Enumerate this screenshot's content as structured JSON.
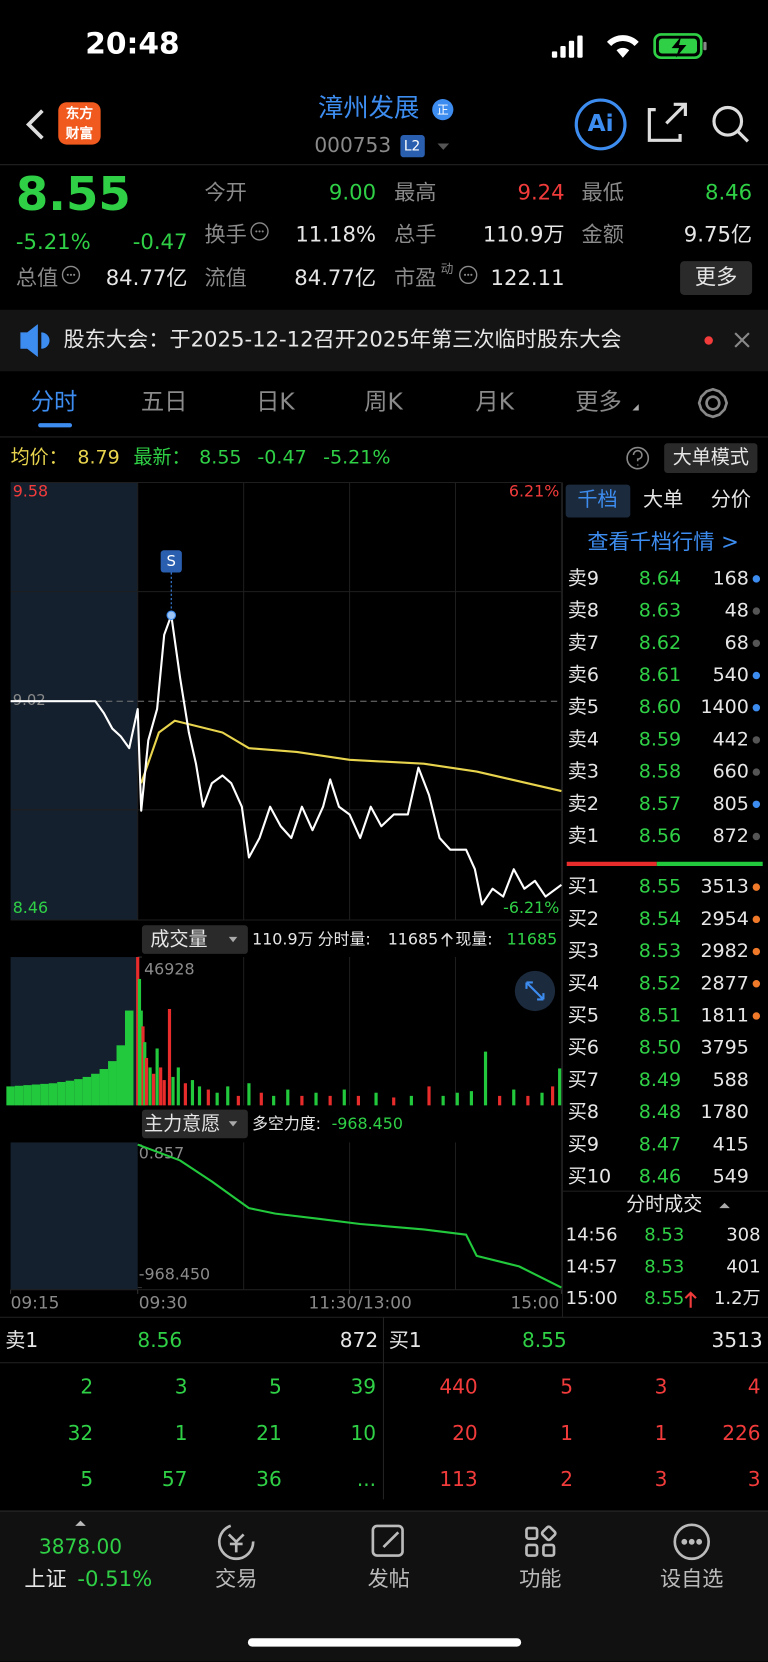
{
  "status_bar": {
    "time": "20:48"
  },
  "header": {
    "logo": [
      "东方",
      "财富"
    ],
    "name": "漳州发展",
    "badge": "正",
    "code": "000753",
    "level": "L2",
    "ai": "Ai"
  },
  "quote": {
    "price": "8.55",
    "change_pct": "-5.21%",
    "change": "-0.47",
    "more": "更多",
    "fields": [
      {
        "label": "今开",
        "value": "9.00",
        "color": "#2fd046"
      },
      {
        "label": "最高",
        "value": "9.24",
        "color": "#f23b3b"
      },
      {
        "label": "最低",
        "value": "8.46",
        "color": "#2fd046"
      },
      {
        "label": "换手",
        "value": "11.18%",
        "color": "#e6e6e6",
        "info": true
      },
      {
        "label": "总手",
        "value": "110.9万",
        "color": "#e6e6e6"
      },
      {
        "label": "金额",
        "value": "9.75亿",
        "color": "#e6e6e6"
      },
      {
        "label": "总值",
        "value": "84.77亿",
        "color": "#e6e6e6",
        "info": true
      },
      {
        "label": "流值",
        "value": "84.77亿",
        "color": "#e6e6e6"
      },
      {
        "label": "市盈",
        "sup": "动",
        "value": "122.11",
        "color": "#e6e6e6",
        "info": true
      }
    ]
  },
  "notice": {
    "text": "股东大会：于2025-12-12召开2025年第三次临时股东大会"
  },
  "tabs": [
    "分时",
    "五日",
    "日K",
    "周K",
    "月K",
    "更多"
  ],
  "info_line": {
    "avg_label": "均价：",
    "avg": "8.79",
    "latest_label": "最新：",
    "latest": "8.55",
    "change": "-0.47",
    "change_pct": "-5.21%",
    "mode_button": "大单模式"
  },
  "intraday": {
    "ylim": [
      8.46,
      9.58
    ],
    "yticks": [
      9.58,
      8.46
    ],
    "y2lim": [
      -6.21,
      6.21
    ],
    "y2ticks": [
      {
        "value": 6.21,
        "label": "6.21%"
      },
      {
        "value": -6.21,
        "label": "-6.21%"
      }
    ],
    "prev_close": 9.02,
    "xlim": [
      0,
      255
    ],
    "xticks": [
      {
        "value": 0,
        "label": "09:15"
      },
      {
        "value": 15,
        "label": "09:30"
      },
      {
        "value": 135,
        "label": "11:30/13:00"
      },
      {
        "value": 255,
        "label": "15:00"
      }
    ],
    "price": {
      "color": "#ffffff",
      "x": [
        0,
        10,
        11,
        12,
        13,
        14,
        15,
        17,
        21,
        26,
        30,
        34,
        39,
        44,
        48,
        52,
        57,
        63,
        68,
        74,
        78,
        84,
        90,
        96,
        102,
        108,
        114,
        120,
        124,
        129,
        135,
        141,
        147,
        153,
        160,
        168,
        174,
        180,
        186,
        192,
        201,
        206,
        210,
        216,
        222,
        228,
        234,
        240,
        246,
        255
      ],
      "values": [
        9.02,
        9.02,
        8.99,
        8.95,
        8.93,
        8.9,
        9.0,
        8.74,
        8.92,
        9.0,
        9.19,
        9.24,
        9.08,
        8.94,
        8.86,
        8.75,
        8.81,
        8.83,
        8.81,
        8.75,
        8.62,
        8.67,
        8.75,
        8.7,
        8.67,
        8.75,
        8.69,
        8.75,
        8.82,
        8.75,
        8.73,
        8.67,
        8.75,
        8.7,
        8.73,
        8.73,
        8.85,
        8.78,
        8.67,
        8.64,
        8.64,
        8.59,
        8.5,
        8.54,
        8.52,
        8.59,
        8.54,
        8.56,
        8.52,
        8.55
      ]
    },
    "average": {
      "color": "#e8d44d",
      "x": [
        17,
        27,
        36,
        45,
        63,
        78,
        105,
        135,
        177,
        207,
        255
      ],
      "values": [
        8.81,
        8.94,
        8.97,
        8.96,
        8.94,
        8.9,
        8.89,
        8.87,
        8.86,
        8.84,
        8.79
      ]
    },
    "marker": {
      "label": "S",
      "x": 34,
      "value": 9.24
    }
  },
  "volume_header": {
    "button": "成交量",
    "total": "110.9万",
    "period_label": "分时量:",
    "period": "11685",
    "current_label": "现量:",
    "current": "11685"
  },
  "volume": {
    "ylim": [
      0,
      46928
    ],
    "yticks": [
      46928
    ],
    "x": [
      0,
      1,
      2,
      3,
      4,
      5,
      6,
      7,
      8,
      9,
      10,
      11,
      12,
      13,
      14,
      15,
      16,
      17,
      18,
      19,
      20,
      22,
      24,
      26,
      28,
      30,
      33,
      35,
      38,
      42,
      46,
      50,
      55,
      60,
      66,
      72,
      78,
      85,
      92,
      100,
      108,
      116,
      124,
      132,
      140,
      150,
      160,
      170,
      180,
      188,
      196,
      204,
      212,
      220,
      228,
      236,
      244,
      250,
      254
    ],
    "values": [
      6000,
      6200,
      6400,
      6600,
      6800,
      7000,
      7400,
      7800,
      8300,
      9000,
      10000,
      11500,
      14000,
      19000,
      30000,
      46928,
      40000,
      30000,
      25000,
      20000,
      15000,
      12000,
      10000,
      18000,
      12000,
      8000,
      30500,
      9000,
      12000,
      7000,
      8000,
      6000,
      5000,
      4000,
      6000,
      3000,
      7000,
      4000,
      3000,
      5000,
      3000,
      4000,
      3000,
      5000,
      3000,
      4000,
      2500,
      3000,
      6000,
      3000,
      4000,
      4500,
      17000,
      3000,
      5000,
      3000,
      4000,
      6000,
      11685
    ],
    "colors": [
      "#22c93c",
      "#22c93c",
      "#22c93c",
      "#22c93c",
      "#22c93c",
      "#22c93c",
      "#22c93c",
      "#22c93c",
      "#22c93c",
      "#22c93c",
      "#22c93c",
      "#22c93c",
      "#22c93c",
      "#22c93c",
      "#22c93c",
      "#e82c2c",
      "#22c93c",
      "#22c93c",
      "#e82c2c",
      "#22c93c",
      "#e82c2c",
      "#22c93c",
      "#e82c2c",
      "#22c93c",
      "#e82c2c",
      "#e82c2c",
      "#e82c2c",
      "#22c93c",
      "#22c93c",
      "#e82c2c",
      "#22c93c",
      "#22c93c",
      "#e82c2c",
      "#22c93c",
      "#22c93c",
      "#e82c2c",
      "#22c93c",
      "#e82c2c",
      "#22c93c",
      "#22c93c",
      "#e82c2c",
      "#22c93c",
      "#e82c2c",
      "#22c93c",
      "#e82c2c",
      "#22c93c",
      "#e82c2c",
      "#22c93c",
      "#e82c2c",
      "#22c93c",
      "#22c93c",
      "#22c93c",
      "#22c93c",
      "#e82c2c",
      "#22c93c",
      "#e82c2c",
      "#22c93c",
      "#e82c2c",
      "#22c93c"
    ]
  },
  "mf_header": {
    "button": "主力意愿",
    "strength_label": "多空力度:",
    "strength": "-968.450"
  },
  "main_force": {
    "color": "#22c93c",
    "ylim": [
      -968.45,
      0.857
    ],
    "yticks": [
      0.857,
      {
        "value": -968.45,
        "label": "-968.450"
      }
    ],
    "x": [
      15,
      39,
      57,
      78,
      93,
      117,
      141,
      177,
      201,
      207,
      231,
      255
    ],
    "values": [
      0.857,
      -107,
      -250,
      -430,
      -467,
      -502,
      -538,
      -574,
      -610,
      -754,
      -825,
      -968.45
    ]
  },
  "order_book": {
    "tabs": [
      "千档",
      "大单",
      "分价"
    ],
    "link": "查看千档行情 >",
    "sell": [
      {
        "label": "卖9",
        "price": "8.64",
        "volume": "168",
        "dot": "#3d8cf0"
      },
      {
        "label": "卖8",
        "price": "8.63",
        "volume": "48",
        "dot": "#555555"
      },
      {
        "label": "卖7",
        "price": "8.62",
        "volume": "68",
        "dot": "#555555"
      },
      {
        "label": "卖6",
        "price": "8.61",
        "volume": "540",
        "dot": "#3d8cf0"
      },
      {
        "label": "卖5",
        "price": "8.60",
        "volume": "1400",
        "dot": "#3d8cf0"
      },
      {
        "label": "卖4",
        "price": "8.59",
        "volume": "442",
        "dot": "#555555"
      },
      {
        "label": "卖3",
        "price": "8.58",
        "volume": "660",
        "dot": "#555555"
      },
      {
        "label": "卖2",
        "price": "8.57",
        "volume": "805",
        "dot": "#3d8cf0"
      },
      {
        "label": "卖1",
        "price": "8.56",
        "volume": "872",
        "dot": "#555555"
      }
    ],
    "buy": [
      {
        "label": "买1",
        "price": "8.55",
        "volume": "3513",
        "dot": "#f07a2a"
      },
      {
        "label": "买2",
        "price": "8.54",
        "volume": "2954",
        "dot": "#f07a2a"
      },
      {
        "label": "买3",
        "price": "8.53",
        "volume": "2982",
        "dot": "#f07a2a"
      },
      {
        "label": "买4",
        "price": "8.52",
        "volume": "2877",
        "dot": "#f07a2a"
      },
      {
        "label": "买5",
        "price": "8.51",
        "volume": "1811",
        "dot": "#f07a2a"
      },
      {
        "label": "买6",
        "price": "8.50",
        "volume": "3795"
      },
      {
        "label": "买7",
        "price": "8.49",
        "volume": "588"
      },
      {
        "label": "买8",
        "price": "8.48",
        "volume": "1780"
      },
      {
        "label": "买9",
        "price": "8.47",
        "volume": "415"
      },
      {
        "label": "买10",
        "price": "8.46",
        "volume": "549"
      }
    ]
  },
  "trades": {
    "title": "分时成交",
    "rows": [
      [
        "14:56",
        "8.53",
        "308"
      ],
      [
        "14:57",
        "8.53",
        "401"
      ],
      [
        "15:00",
        "8.55",
        "1.2万"
      ]
    ]
  },
  "queue": {
    "sell_label": "卖1",
    "sell_price": "8.56",
    "sell_volume": "872",
    "buy_label": "买1",
    "buy_price": "8.55",
    "buy_volume": "3513",
    "sell_rows": [
      [
        "2",
        "3",
        "5",
        "39"
      ],
      [
        "32",
        "1",
        "21",
        "10"
      ],
      [
        "5",
        "57",
        "36",
        "..."
      ]
    ],
    "buy_rows": [
      [
        "440",
        "5",
        "3",
        "4"
      ],
      [
        "20",
        "1",
        "1",
        "226"
      ],
      [
        "113",
        "2",
        "3",
        "3"
      ]
    ]
  },
  "nav": {
    "index_value": "3878.00",
    "index_name": "上证",
    "index_change": "-0.51%",
    "items": [
      "交易",
      "发帖",
      "功能",
      "设自选"
    ]
  }
}
